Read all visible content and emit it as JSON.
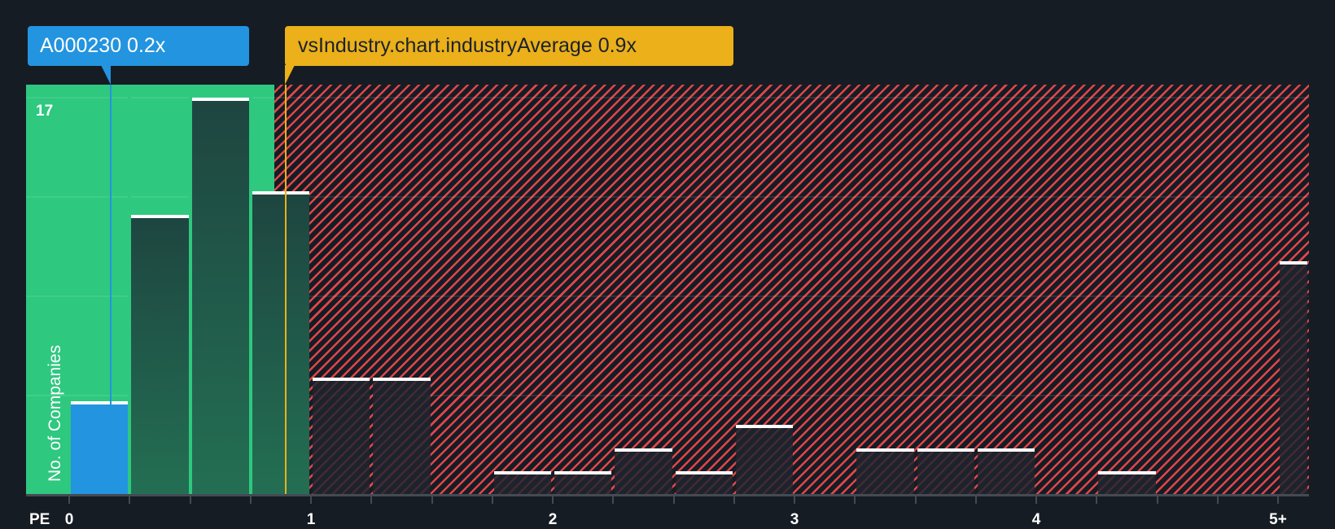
{
  "callouts": {
    "subject": {
      "label": "A000230 0.2x",
      "color": "#2394df",
      "value": 0.2
    },
    "industry": {
      "label": "vsIndustry.chart.industryAverage 0.9x",
      "color": "#ebb01a",
      "value": 0.9
    }
  },
  "axis": {
    "x_prefix": "PE",
    "x_ticks": [
      "0",
      "1",
      "2",
      "3",
      "4",
      "5+"
    ],
    "y_max_label": "17",
    "y_label": "No. of Companies"
  },
  "colors": {
    "background": "#161c24",
    "undervalued_zone": "#2ec87f",
    "overvalued_hatch": "#e0464a",
    "subject_bar": "#2394df",
    "industry_line": "#ebb01a"
  },
  "chart_data": {
    "type": "bar",
    "title": "",
    "xlabel": "PE",
    "ylabel": "No. of Companies",
    "ylim": [
      0,
      17
    ],
    "grid": true,
    "bin_width": 0.25,
    "categories": [
      "0-0.25",
      "0.25-0.5",
      "0.5-0.75",
      "0.75-1",
      "1-1.25",
      "1.25-1.5",
      "1.5-1.75",
      "1.75-2",
      "2-2.25",
      "2.25-2.5",
      "2.5-2.75",
      "2.75-3",
      "3-3.25",
      "3.25-3.5",
      "3.5-3.75",
      "3.75-4",
      "4-4.25",
      "4.25-4.5",
      "4.5-4.75",
      "4.75-5",
      "5+"
    ],
    "values": [
      4,
      12,
      17,
      13,
      5,
      5,
      0,
      1,
      1,
      2,
      1,
      3,
      0,
      2,
      2,
      2,
      0,
      1,
      0,
      0,
      10
    ],
    "annotations": [
      {
        "label": "A000230 0.2x",
        "x": 0.2,
        "type": "subject"
      },
      {
        "label": "vsIndustry.chart.industryAverage 0.9x",
        "x": 0.9,
        "type": "industry-average"
      }
    ],
    "x_tick_labels": [
      "0",
      "1",
      "2",
      "3",
      "4",
      "5+"
    ],
    "y_tick_labels": [
      "17"
    ]
  }
}
